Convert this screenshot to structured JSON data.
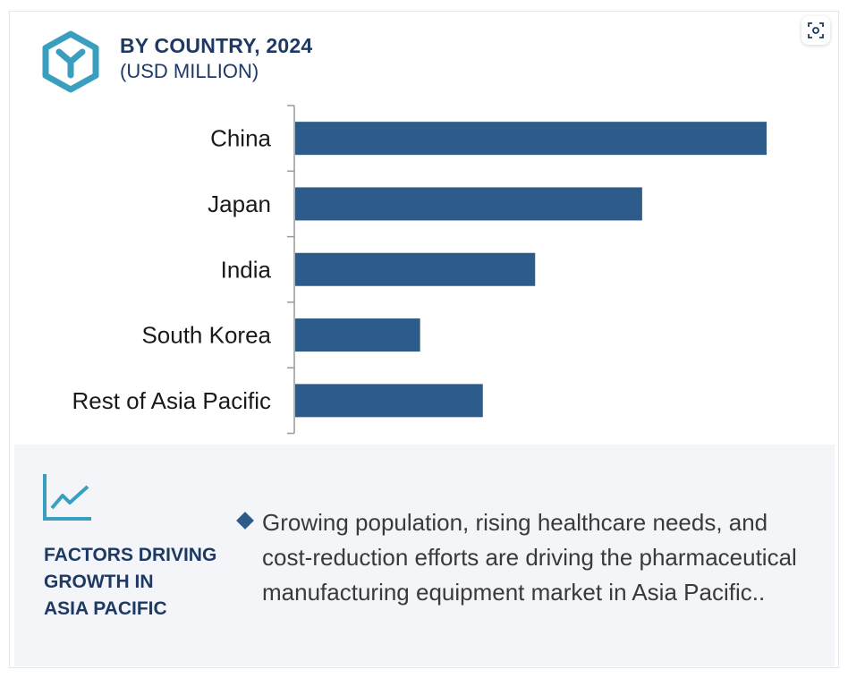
{
  "header": {
    "title": "BY COUNTRY, 2024",
    "subtitle": "(USD MILLION)"
  },
  "colors": {
    "bar": "#2d5b8a",
    "logo": "#3a9fbf",
    "heading": "#1e3a64",
    "panel_bg": "#f3f5f9"
  },
  "chart_data": {
    "type": "bar",
    "orientation": "horizontal",
    "title": "BY COUNTRY, 2024",
    "subtitle": "(USD MILLION)",
    "categories": [
      "China",
      "Japan",
      "India",
      "South Korea",
      "Rest of Asia Pacific"
    ],
    "values": [
      100,
      73.6,
      50.9,
      26.5,
      39.8
    ],
    "xlim": [
      0,
      100
    ],
    "grid": false,
    "value_axis_visible": false
  },
  "factors": {
    "title": "FACTORS DRIVING\nGROWTH IN\nASIA PACIFIC",
    "bullet": "Growing population, rising healthcare needs, and cost-reduction efforts are driving the pharmaceutical manufacturing equipment market in Asia Pacific.."
  },
  "icons": {
    "logo": "hexagon-y-logo-icon",
    "scan": "scan-icon",
    "trend": "trend-chart-icon",
    "bullet": "diamond-bullet-icon"
  }
}
